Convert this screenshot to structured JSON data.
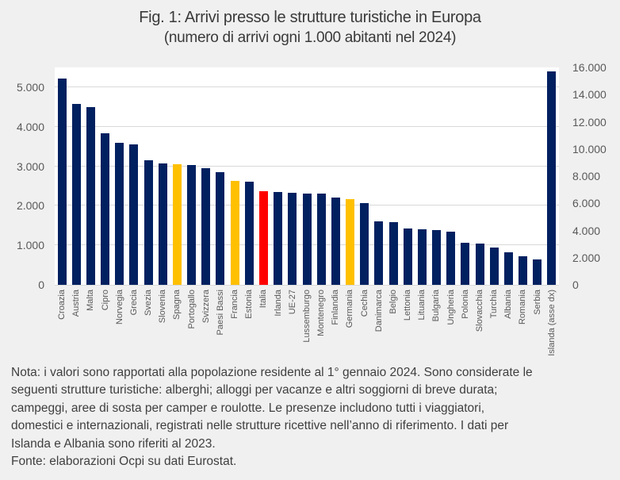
{
  "chart_data": {
    "type": "bar",
    "title": "Fig. 1: Arrivi presso le strutture turistiche in Europa",
    "subtitle": "(numero di arrivi ogni 1.000 abitanti nel 2024)",
    "grid": true,
    "legend": false,
    "left_axis": {
      "ticks": [
        "0",
        "1.000",
        "2.000",
        "3.000",
        "4.000",
        "5.000"
      ],
      "tick_values": [
        0,
        1000,
        2000,
        3000,
        4000,
        5000
      ],
      "max": 5500
    },
    "right_axis": {
      "ticks": [
        "0",
        "2.000",
        "4.000",
        "6.000",
        "8.000",
        "10.000",
        "12.000",
        "14.000",
        "16.000"
      ],
      "tick_values": [
        0,
        2000,
        4000,
        6000,
        8000,
        10000,
        12000,
        14000,
        16000
      ],
      "max": 16000
    },
    "colors": {
      "navy": "#002060",
      "gold": "#FFC000",
      "red": "#FF0000",
      "page_bg": "#F0F0F0",
      "plot_bg": "#FFFFFF",
      "gridline": "#D9D9D9",
      "axis_text": "#595959",
      "text": "#3F3F3F"
    },
    "bars": [
      {
        "label": "Croazia",
        "value": 5220,
        "color": "navy",
        "axis": "left"
      },
      {
        "label": "Austria",
        "value": 4580,
        "color": "navy",
        "axis": "left"
      },
      {
        "label": "Malta",
        "value": 4490,
        "color": "navy",
        "axis": "left"
      },
      {
        "label": "Cipro",
        "value": 3830,
        "color": "navy",
        "axis": "left"
      },
      {
        "label": "Norvegia",
        "value": 3600,
        "color": "navy",
        "axis": "left"
      },
      {
        "label": "Grecia",
        "value": 3550,
        "color": "navy",
        "axis": "left"
      },
      {
        "label": "Svezia",
        "value": 3160,
        "color": "navy",
        "axis": "left"
      },
      {
        "label": "Slovenia",
        "value": 3080,
        "color": "navy",
        "axis": "left"
      },
      {
        "label": "Spagna",
        "value": 3060,
        "color": "gold",
        "axis": "left"
      },
      {
        "label": "Portogallo",
        "value": 3030,
        "color": "navy",
        "axis": "left"
      },
      {
        "label": "Svizzera",
        "value": 2950,
        "color": "navy",
        "axis": "left"
      },
      {
        "label": "Paesi Bassi",
        "value": 2850,
        "color": "navy",
        "axis": "left"
      },
      {
        "label": "Francia",
        "value": 2630,
        "color": "gold",
        "axis": "left"
      },
      {
        "label": "Estonia",
        "value": 2600,
        "color": "navy",
        "axis": "left"
      },
      {
        "label": "Italia",
        "value": 2360,
        "color": "red",
        "axis": "left"
      },
      {
        "label": "Irlanda",
        "value": 2350,
        "color": "navy",
        "axis": "left"
      },
      {
        "label": "UE-27",
        "value": 2320,
        "color": "navy",
        "axis": "left"
      },
      {
        "label": "Lussemburgo",
        "value": 2310,
        "color": "navy",
        "axis": "left"
      },
      {
        "label": "Montenegro",
        "value": 2300,
        "color": "navy",
        "axis": "left"
      },
      {
        "label": "Finlandia",
        "value": 2200,
        "color": "navy",
        "axis": "left"
      },
      {
        "label": "Germania",
        "value": 2170,
        "color": "gold",
        "axis": "left"
      },
      {
        "label": "Cechia",
        "value": 2070,
        "color": "navy",
        "axis": "left"
      },
      {
        "label": "Danimarca",
        "value": 1610,
        "color": "navy",
        "axis": "left"
      },
      {
        "label": "Belgio",
        "value": 1580,
        "color": "navy",
        "axis": "left"
      },
      {
        "label": "Lettonia",
        "value": 1420,
        "color": "navy",
        "axis": "left"
      },
      {
        "label": "Lituania",
        "value": 1400,
        "color": "navy",
        "axis": "left"
      },
      {
        "label": "Bulgaria",
        "value": 1380,
        "color": "navy",
        "axis": "left"
      },
      {
        "label": "Ungheria",
        "value": 1340,
        "color": "navy",
        "axis": "left"
      },
      {
        "label": "Polonia",
        "value": 1060,
        "color": "navy",
        "axis": "left"
      },
      {
        "label": "Slovacchia",
        "value": 1050,
        "color": "navy",
        "axis": "left"
      },
      {
        "label": "Turchia",
        "value": 950,
        "color": "navy",
        "axis": "left"
      },
      {
        "label": "Albania",
        "value": 820,
        "color": "navy",
        "axis": "left"
      },
      {
        "label": "Romania",
        "value": 720,
        "color": "navy",
        "axis": "left"
      },
      {
        "label": "Serbia",
        "value": 640,
        "color": "navy",
        "axis": "left"
      },
      {
        "label": "Islanda (asse dx)",
        "value": 15700,
        "color": "navy",
        "axis": "right"
      }
    ]
  },
  "note": {
    "lines": [
      "Nota: i valori sono rapportati alla popolazione residente al 1° gennaio 2024. Sono considerate le",
      "seguenti strutture turistiche: alberghi; alloggi per vacanze e altri soggiorni di breve durata;",
      "campeggi, aree di sosta per camper e roulotte. Le presenze includono tutti i viaggiatori,",
      "domestici e internazionali, registrati nelle strutture ricettive nell’anno di riferimento. I dati per",
      "Islanda e Albania sono riferiti al 2023.",
      "Fonte: elaborazioni Ocpi su dati Eurostat."
    ]
  }
}
